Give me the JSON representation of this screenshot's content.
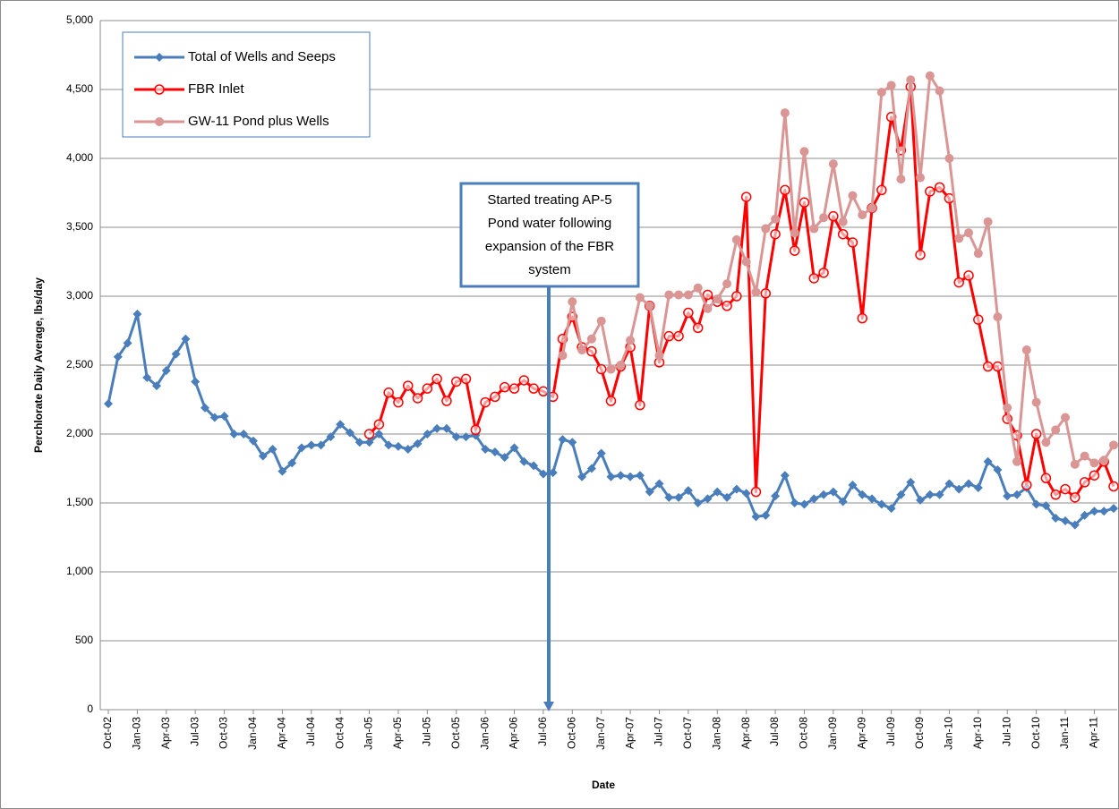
{
  "chart_data": {
    "type": "line",
    "x_label": "Date",
    "y_label": "Perchlorate Daily Average, lbs/day",
    "annotation": [
      "Started treating AP-5",
      "Pond water following",
      "expansion of the FBR",
      "system"
    ],
    "categories": [
      "Oct-02",
      null,
      null,
      "Jan-03",
      null,
      null,
      "Apr-03",
      null,
      null,
      "Jul-03",
      null,
      null,
      "Oct-03",
      null,
      null,
      "Jan-04",
      null,
      null,
      "Apr-04",
      null,
      null,
      "Jul-04",
      null,
      null,
      "Oct-04",
      null,
      null,
      "Jan-05",
      null,
      null,
      "Apr-05",
      null,
      null,
      "Jul-05",
      null,
      null,
      "Oct-05",
      null,
      null,
      "Jan-06",
      null,
      null,
      "Apr-06",
      null,
      null,
      "Jul-06",
      null,
      null,
      "Oct-06",
      null,
      null,
      "Jan-07",
      null,
      null,
      "Apr-07",
      null,
      null,
      "Jul-07",
      null,
      null,
      "Oct-07",
      null,
      null,
      "Jan-08",
      null,
      null,
      "Apr-08",
      null,
      null,
      "Jul-08",
      null,
      null,
      "Oct-08",
      null,
      null,
      "Jan-09",
      null,
      null,
      "Apr-09",
      null,
      null,
      "Jul-09",
      null,
      null,
      "Oct-09",
      null,
      null,
      "Jan-10",
      null,
      null,
      "Apr-10",
      null,
      null,
      "Jul-10",
      null,
      null,
      "Oct-10",
      null,
      null,
      "Jan-11",
      null,
      null,
      "Apr-11",
      null,
      null
    ],
    "series": [
      {
        "name": "Total of Wells and Seeps",
        "color": "#4a7ebb",
        "marker": "diamond",
        "values": [
          2220,
          2560,
          2660,
          2870,
          2410,
          2350,
          2460,
          2580,
          2690,
          2380,
          2190,
          2120,
          2130,
          2000,
          2000,
          1950,
          1840,
          1890,
          1730,
          1790,
          1900,
          1920,
          1920,
          1980,
          2070,
          2010,
          1940,
          1940,
          2000,
          1920,
          1910,
          1890,
          1930,
          2000,
          2040,
          2040,
          1980,
          1980,
          1990,
          1890,
          1870,
          1830,
          1900,
          1800,
          1770,
          1710,
          1720,
          1960,
          1940,
          1690,
          1750,
          1860,
          1690,
          1700,
          1690,
          1700,
          1580,
          1640,
          1540,
          1540,
          1590,
          1500,
          1530,
          1580,
          1540,
          1600,
          1570,
          1400,
          1410,
          1550,
          1700,
          1500,
          1490,
          1530,
          1560,
          1580,
          1510,
          1630,
          1560,
          1530,
          1490,
          1460,
          1560,
          1650,
          1520,
          1560,
          1560,
          1640,
          1600,
          1640,
          1610,
          1800,
          1740,
          1550,
          1560,
          1610,
          1490,
          1480,
          1390,
          1370,
          1340,
          1410,
          1440,
          1440,
          1460
        ]
      },
      {
        "name": "FBR Inlet",
        "color": "#ff0000",
        "marker": "open-circle",
        "values": [
          null,
          null,
          null,
          null,
          null,
          null,
          null,
          null,
          null,
          null,
          null,
          null,
          null,
          null,
          null,
          null,
          null,
          null,
          null,
          null,
          null,
          null,
          null,
          null,
          null,
          null,
          null,
          2000,
          2070,
          2300,
          2230,
          2350,
          2260,
          2330,
          2400,
          2240,
          2380,
          2400,
          2030,
          2230,
          2270,
          2340,
          2330,
          2390,
          2330,
          2310,
          2270,
          2690,
          2850,
          2630,
          2600,
          2470,
          2240,
          2490,
          2630,
          2210,
          2930,
          2520,
          2710,
          2710,
          2880,
          2770,
          3010,
          2960,
          2930,
          3000,
          3720,
          1580,
          3020,
          3450,
          3770,
          3330,
          3680,
          3130,
          3170,
          3580,
          3450,
          3390,
          2840,
          3640,
          3770,
          4300,
          4060,
          4520,
          3300,
          3760,
          3790,
          3710,
          3100,
          3150,
          2830,
          2490,
          2490,
          2110,
          1990,
          1630,
          2000,
          1680,
          1560,
          1600,
          1540,
          1650,
          1700,
          1800,
          1620
        ]
      },
      {
        "name": "GW-11 Pond plus Wells",
        "color": "#d99694",
        "marker": "circle",
        "values": [
          null,
          null,
          null,
          null,
          null,
          null,
          null,
          null,
          null,
          null,
          null,
          null,
          null,
          null,
          null,
          null,
          null,
          null,
          null,
          null,
          null,
          null,
          null,
          null,
          null,
          null,
          null,
          null,
          null,
          null,
          null,
          null,
          null,
          null,
          null,
          null,
          null,
          null,
          null,
          null,
          null,
          null,
          null,
          null,
          null,
          null,
          null,
          2570,
          2960,
          2610,
          2690,
          2820,
          2470,
          2500,
          2680,
          2990,
          2930,
          2570,
          3010,
          3010,
          3010,
          3060,
          2910,
          2980,
          3090,
          3410,
          3250,
          3030,
          3490,
          3560,
          4330,
          3460,
          4050,
          3490,
          3570,
          3960,
          3540,
          3730,
          3590,
          3640,
          4480,
          4530,
          3850,
          4570,
          3860,
          4600,
          4490,
          4000,
          3420,
          3460,
          3310,
          3540,
          2850,
          2190,
          1800,
          2610,
          2230,
          1940,
          2030,
          2120,
          1780,
          1840,
          1790,
          1810,
          1920
        ]
      }
    ],
    "ylim": [
      0,
      5000
    ],
    "yticks": [
      0,
      500,
      {
        "value": 1000,
        "label": "1,000"
      },
      {
        "value": 1500,
        "label": "1,500"
      },
      {
        "value": 2000,
        "label": "2,000"
      },
      {
        "value": 2500,
        "label": "2,500"
      },
      {
        "value": 3000,
        "label": "3,000"
      },
      {
        "value": 3500,
        "label": "3,500"
      },
      {
        "value": 4000,
        "label": "4,000"
      },
      {
        "value": 4500,
        "label": "4,500"
      },
      {
        "value": 5000,
        "label": "5,000"
      }
    ],
    "grid": true,
    "legend": "top-left"
  }
}
